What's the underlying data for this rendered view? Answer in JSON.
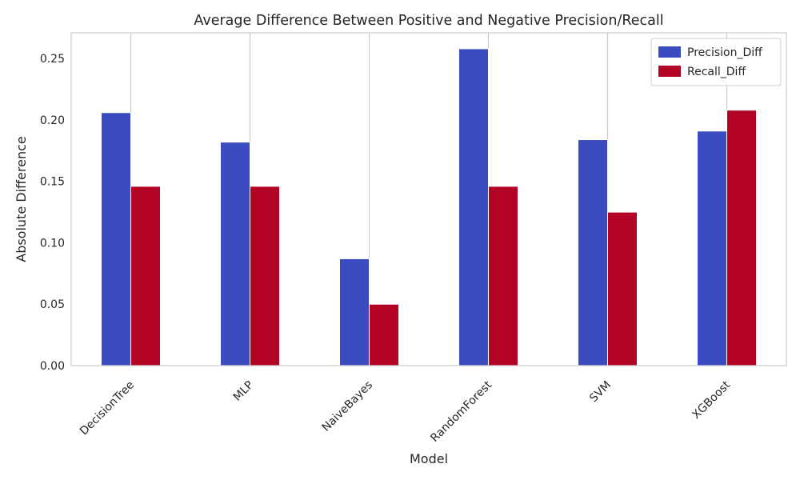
{
  "chart_data": {
    "type": "bar",
    "title": "Average Difference Between Positive and Negative Precision/Recall",
    "xlabel": "Model",
    "ylabel": "Absolute Difference",
    "categories": [
      "DecisionTree",
      "MLP",
      "NaiveBayes",
      "RandomForest",
      "SVM",
      "XGBoost"
    ],
    "series": [
      {
        "name": "Precision_Diff",
        "color": "#3b4cc0",
        "values": [
          0.206,
          0.182,
          0.087,
          0.258,
          0.184,
          0.191
        ]
      },
      {
        "name": "Recall_Diff",
        "color": "#b40426",
        "values": [
          0.146,
          0.146,
          0.05,
          0.146,
          0.125,
          0.208
        ]
      }
    ],
    "ylim": [
      0,
      0.271
    ],
    "yticks": [
      "0.00",
      "0.05",
      "0.10",
      "0.15",
      "0.20",
      "0.25"
    ],
    "grid": "vertical",
    "legend": "top-right"
  }
}
